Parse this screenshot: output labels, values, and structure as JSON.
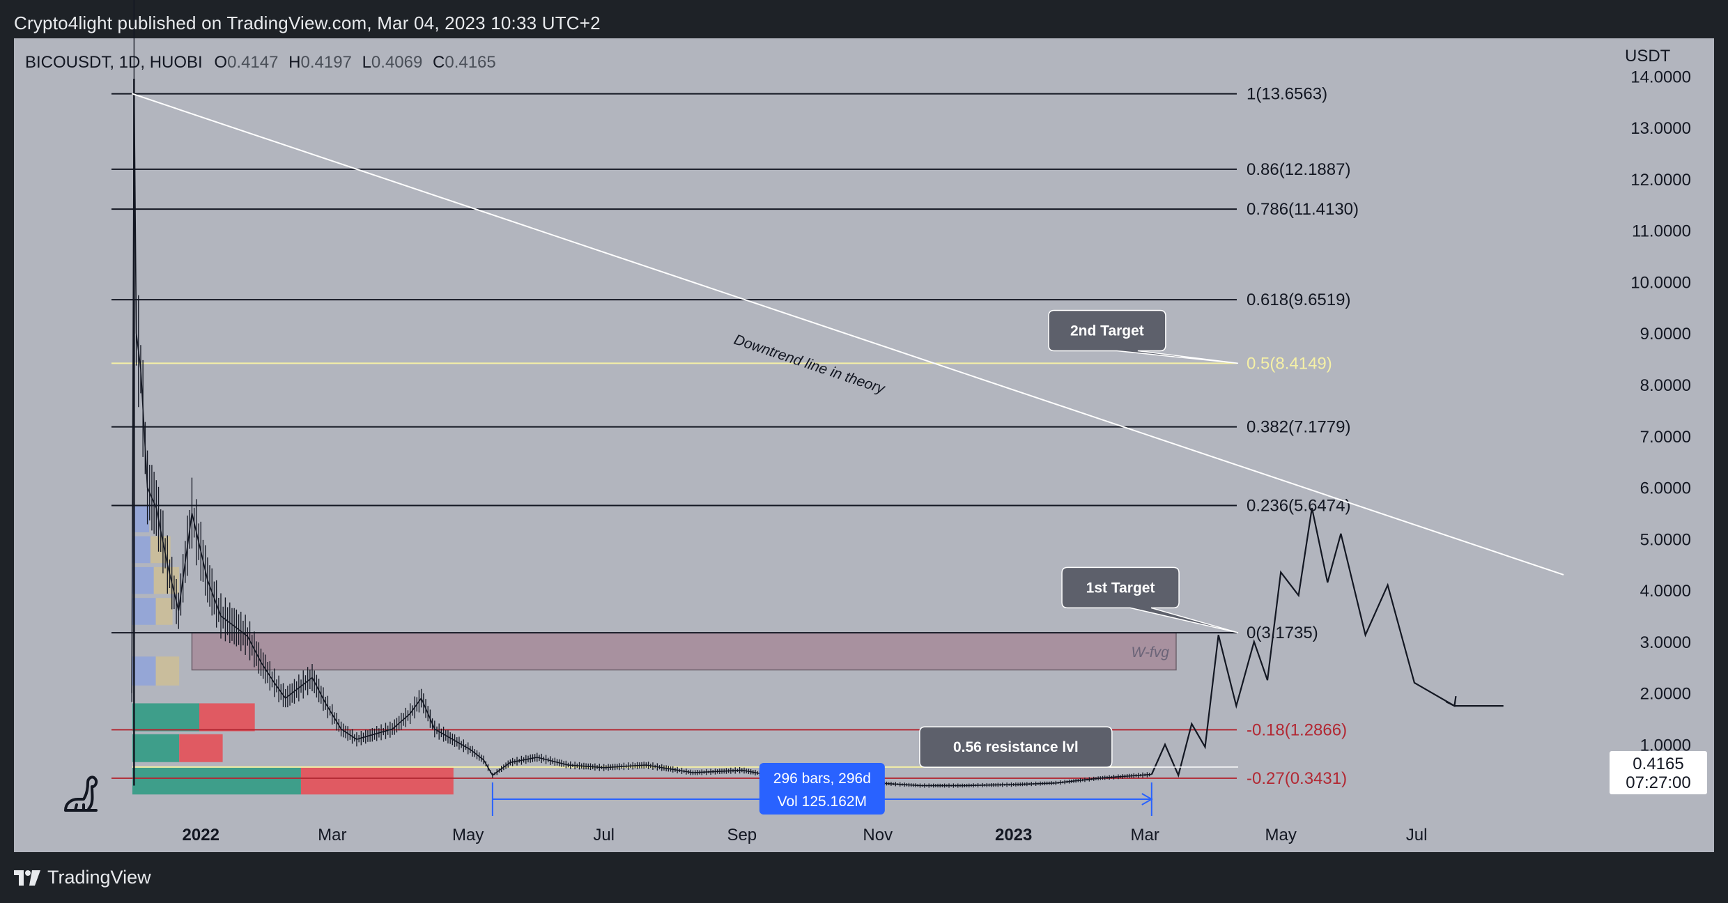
{
  "header": {
    "published_line": "Crypto4light published on TradingView.com, Mar 04, 2023 10:33 UTC+2"
  },
  "symbol": {
    "name": "BICOUSDT, 1D, HUOBI",
    "open_label": "O",
    "open": "0.4147",
    "high_label": "H",
    "high": "0.4197",
    "low_label": "L",
    "low": "0.4069",
    "close_label": "C",
    "close": "0.4165"
  },
  "price_scale": {
    "currency": "USDT",
    "current_price": "0.4165",
    "countdown": "07:27:00"
  },
  "brand": {
    "label": "TradingView"
  },
  "colors": {
    "chart_bg": "#b2b5be",
    "fib_yellow": "#f5f0a6",
    "fib_red": "#b22833",
    "trend_white": "#ffffff",
    "measure_blue": "#2962ff",
    "fvg_fill": "#a8919f",
    "volume_green": "#3e9e8a",
    "volume_red": "#e05a62",
    "vp_blue": "#95a6d6",
    "vp_tan": "#c9bd9c"
  },
  "chart_data": {
    "type": "line",
    "title": "",
    "xlabel": "",
    "ylabel": "USDT",
    "y_scale": "linear",
    "ylim": [
      -0.2,
      14.6
    ],
    "x_range": [
      "2021-11-25",
      "2023-09-10"
    ],
    "grid": false,
    "y_ticks": [
      "14.0000",
      "13.0000",
      "12.0000",
      "11.0000",
      "10.0000",
      "9.0000",
      "8.0000",
      "7.0000",
      "6.0000",
      "5.0000",
      "4.0000",
      "3.0000",
      "2.0000",
      "1.0000"
    ],
    "y_tick_values": [
      14,
      13,
      12,
      11,
      10,
      9,
      8,
      7,
      6,
      5,
      4,
      3,
      2,
      1
    ],
    "x_ticks": [
      {
        "label": "2022",
        "date": "2022-01-01",
        "bold": true
      },
      {
        "label": "Mar",
        "date": "2022-03-01",
        "bold": false
      },
      {
        "label": "May",
        "date": "2022-05-01",
        "bold": false
      },
      {
        "label": "Jul",
        "date": "2022-07-01",
        "bold": false
      },
      {
        "label": "Sep",
        "date": "2022-09-01",
        "bold": false
      },
      {
        "label": "Nov",
        "date": "2022-11-01",
        "bold": false
      },
      {
        "label": "2023",
        "date": "2023-01-01",
        "bold": true
      },
      {
        "label": "Mar",
        "date": "2023-03-01",
        "bold": false
      },
      {
        "label": "May",
        "date": "2023-05-01",
        "bold": false
      },
      {
        "label": "Jul",
        "date": "2023-07-01",
        "bold": false
      }
    ],
    "fib_levels": [
      {
        "label": "1(13.6563)",
        "value": 13.6563,
        "style": "black"
      },
      {
        "label": "0.86(12.1887)",
        "value": 12.1887,
        "style": "black"
      },
      {
        "label": "0.786(11.4130)",
        "value": 11.413,
        "style": "black"
      },
      {
        "label": "0.618(9.6519)",
        "value": 9.6519,
        "style": "black"
      },
      {
        "label": "0.5(8.4149)",
        "value": 8.4149,
        "style": "yellow"
      },
      {
        "label": "0.382(7.1779)",
        "value": 7.1779,
        "style": "black"
      },
      {
        "label": "0.236(5.6474)",
        "value": 5.6474,
        "style": "black"
      },
      {
        "label": "0(3.1735)",
        "value": 3.1735,
        "style": "black"
      },
      {
        "label": "-0.18(1.2866)",
        "value": 1.2866,
        "style": "red"
      },
      {
        "label": "-0.27(0.3431)",
        "value": 0.3431,
        "style": "red"
      }
    ],
    "price_series": {
      "name": "",
      "x": [
        "2021-12-01",
        "2021-12-02",
        "2021-12-03",
        "2021-12-05",
        "2021-12-08",
        "2021-12-12",
        "2021-12-17",
        "2021-12-22",
        "2021-12-28",
        "2022-01-04",
        "2022-01-10",
        "2022-01-16",
        "2022-01-22",
        "2022-01-28",
        "2022-02-03",
        "2022-02-08",
        "2022-02-14",
        "2022-02-20",
        "2022-02-26",
        "2022-03-05",
        "2022-03-12",
        "2022-03-20",
        "2022-03-28",
        "2022-04-05",
        "2022-04-10",
        "2022-04-16",
        "2022-04-24",
        "2022-05-02",
        "2022-05-08",
        "2022-05-12",
        "2022-05-20",
        "2022-06-01",
        "2022-06-15",
        "2022-07-01",
        "2022-07-20",
        "2022-08-10",
        "2022-09-01",
        "2022-09-20",
        "2022-10-10",
        "2022-11-01",
        "2022-11-20",
        "2022-12-10",
        "2023-01-01",
        "2023-01-20",
        "2023-02-10",
        "2023-03-04"
      ],
      "y": [
        2.0,
        13.9,
        9.0,
        8.3,
        6.0,
        5.6,
        4.5,
        3.6,
        5.5,
        4.2,
        3.5,
        3.3,
        3.1,
        2.6,
        2.2,
        1.9,
        2.1,
        2.3,
        1.8,
        1.3,
        1.1,
        1.2,
        1.3,
        1.6,
        1.9,
        1.3,
        1.1,
        0.9,
        0.7,
        0.4,
        0.65,
        0.75,
        0.6,
        0.55,
        0.6,
        0.45,
        0.5,
        0.35,
        0.3,
        0.25,
        0.2,
        0.2,
        0.22,
        0.25,
        0.35,
        0.4165
      ]
    },
    "projection_series": {
      "name": "",
      "x": [
        "2023-03-04",
        "2023-03-10",
        "2023-03-16",
        "2023-03-22",
        "2023-03-28",
        "2023-04-03",
        "2023-04-11",
        "2023-04-19",
        "2023-04-25",
        "2023-05-01",
        "2023-05-09",
        "2023-05-15",
        "2023-05-22",
        "2023-05-28",
        "2023-06-08",
        "2023-06-18",
        "2023-06-30",
        "2023-07-18",
        "2023-08-03",
        "2023-08-09"
      ],
      "y": [
        0.4165,
        1.0,
        0.4,
        1.4,
        0.95,
        3.13,
        1.75,
        3.0,
        2.25,
        4.35,
        3.9,
        5.6,
        4.15,
        5.1,
        3.13,
        4.1,
        2.2,
        1.75,
        1.75,
        1.75
      ]
    },
    "downtrend_line": {
      "x1": "2021-12-01",
      "y1": 13.66,
      "x2": "2023-09-05",
      "y2": 4.3
    },
    "fvg_zone": {
      "label": "W-fvg",
      "y_low": 2.45,
      "y_high": 3.17,
      "x_start": "2021-12-28",
      "x_end": "2023-03-15"
    },
    "yellow_level": 0.56,
    "measure": {
      "x_start": "2022-05-12",
      "x_end": "2023-03-04",
      "line1": "296 bars, 296d",
      "line2": "Vol 125.162M"
    },
    "annotations": [
      {
        "label": "2nd Target",
        "x": "2023-02-12",
        "y": 9.05,
        "points_to_value": 8.4149
      },
      {
        "label": "1st Target",
        "x": "2023-02-18",
        "y": 4.05,
        "points_to_value": 3.1735
      },
      {
        "label": "0.56 resistance lvl",
        "x": "2023-01-02",
        "y": 0.95,
        "points_to_value": 0.56
      },
      {
        "label": "Downtrend line in theory",
        "x": "2022-08-28",
        "y": 8.8,
        "rotated": true
      }
    ],
    "volume_profile": [
      {
        "value_low": 2.12,
        "value_high": 2.71,
        "blue": 0.35,
        "tan": 0.35
      },
      {
        "value_low": 1.23,
        "value_high": 1.8,
        "green": 1.0,
        "red": 0.83
      },
      {
        "value_low": 0.63,
        "value_high": 1.2,
        "green": 0.7,
        "red": 0.65
      },
      {
        "value_low": 0.0,
        "value_high": 0.57,
        "green": 2.52,
        "red": 2.28
      },
      {
        "value_low": 5.1,
        "value_high": 5.65,
        "blue": 0.25,
        "tan": 0.0
      },
      {
        "value_low": 4.5,
        "value_high": 5.05,
        "blue": 0.27,
        "tan": 0.3
      },
      {
        "value_low": 3.9,
        "value_high": 4.45,
        "blue": 0.32,
        "tan": 0.38
      },
      {
        "value_low": 3.3,
        "value_high": 3.85,
        "blue": 0.35,
        "tan": 0.25
      }
    ]
  }
}
